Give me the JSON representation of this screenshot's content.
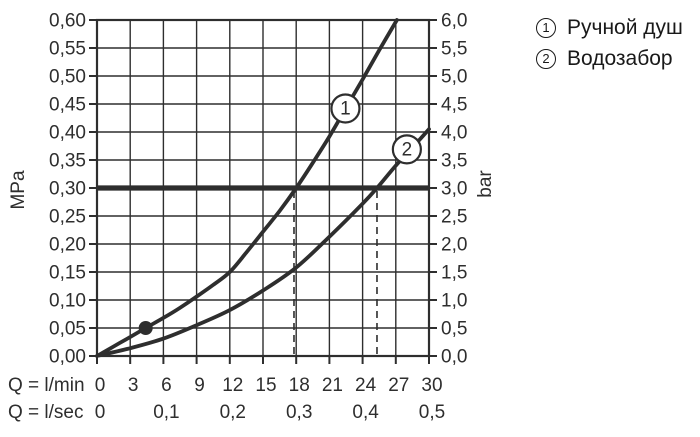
{
  "legend": {
    "items": [
      {
        "num": "1",
        "label": "Ручной душ"
      },
      {
        "num": "2",
        "label": "Водозабор"
      }
    ]
  },
  "chart_data": {
    "type": "line",
    "title": "",
    "grid": true,
    "colors": {
      "ink": "#2e2e2e",
      "background": "#ffffff",
      "badge_fill": "#ffffff"
    },
    "x": {
      "label": "Q = l/min",
      "range": [
        0,
        30
      ],
      "ticks": [
        "0",
        "3",
        "6",
        "9",
        "12",
        "15",
        "18",
        "21",
        "24",
        "27",
        "30"
      ],
      "tick_positions": [
        0,
        3,
        6,
        9,
        12,
        15,
        18,
        21,
        24,
        27,
        30
      ]
    },
    "x_secondary": {
      "label": "Q = l/sec",
      "ticks": [
        "0",
        "0,1",
        "0,2",
        "0,3",
        "0,4",
        "0,5"
      ],
      "tick_positions_lmin": [
        0,
        6,
        12,
        18,
        24,
        30
      ]
    },
    "y_left": {
      "label": "MPa",
      "range": [
        0,
        0.6
      ],
      "ticks": [
        "0,00",
        "0,05",
        "0,10",
        "0,15",
        "0,20",
        "0,25",
        "0,30",
        "0,35",
        "0,40",
        "0,45",
        "0,50",
        "0,55",
        "0,60"
      ]
    },
    "y_right": {
      "label": "bar",
      "range": [
        0,
        6
      ],
      "ticks": [
        "0,0",
        "0,5",
        "1,0",
        "1,5",
        "2,0",
        "2,5",
        "3,0",
        "3,5",
        "4,0",
        "4,5",
        "5,0",
        "5,5",
        "6,0"
      ]
    },
    "reference_line_mpa": 0.3,
    "dashed_guides_lmin": [
      17.8,
      25.3
    ],
    "point_marker": {
      "lmin": 4.4,
      "mpa": 0.05
    },
    "series": [
      {
        "id": "1",
        "name": "Ручной душ",
        "badge_at": {
          "lmin": 22.45,
          "mpa": 0.442
        },
        "points": [
          [
            0,
            0
          ],
          [
            1.5,
            0.017
          ],
          [
            3,
            0.034
          ],
          [
            4.4,
            0.05
          ],
          [
            6,
            0.068
          ],
          [
            7.5,
            0.086
          ],
          [
            9,
            0.106
          ],
          [
            10.5,
            0.127
          ],
          [
            12,
            0.15
          ],
          [
            13.5,
            0.185
          ],
          [
            15,
            0.222
          ],
          [
            16.5,
            0.259
          ],
          [
            18,
            0.3
          ],
          [
            19.5,
            0.345
          ],
          [
            21,
            0.392
          ],
          [
            22.5,
            0.443
          ],
          [
            24,
            0.494
          ],
          [
            25.5,
            0.546
          ],
          [
            27.1,
            0.6
          ]
        ]
      },
      {
        "id": "2",
        "name": "Водозабор",
        "badge_at": {
          "lmin": 28.0,
          "mpa": 0.369
        },
        "points": [
          [
            0,
            0
          ],
          [
            3,
            0.014
          ],
          [
            6,
            0.031
          ],
          [
            9,
            0.055
          ],
          [
            12,
            0.082
          ],
          [
            15,
            0.117
          ],
          [
            18,
            0.158
          ],
          [
            21,
            0.213
          ],
          [
            24,
            0.272
          ],
          [
            25.3,
            0.3
          ],
          [
            27,
            0.34
          ],
          [
            28.5,
            0.372
          ],
          [
            30,
            0.405
          ]
        ]
      }
    ]
  }
}
